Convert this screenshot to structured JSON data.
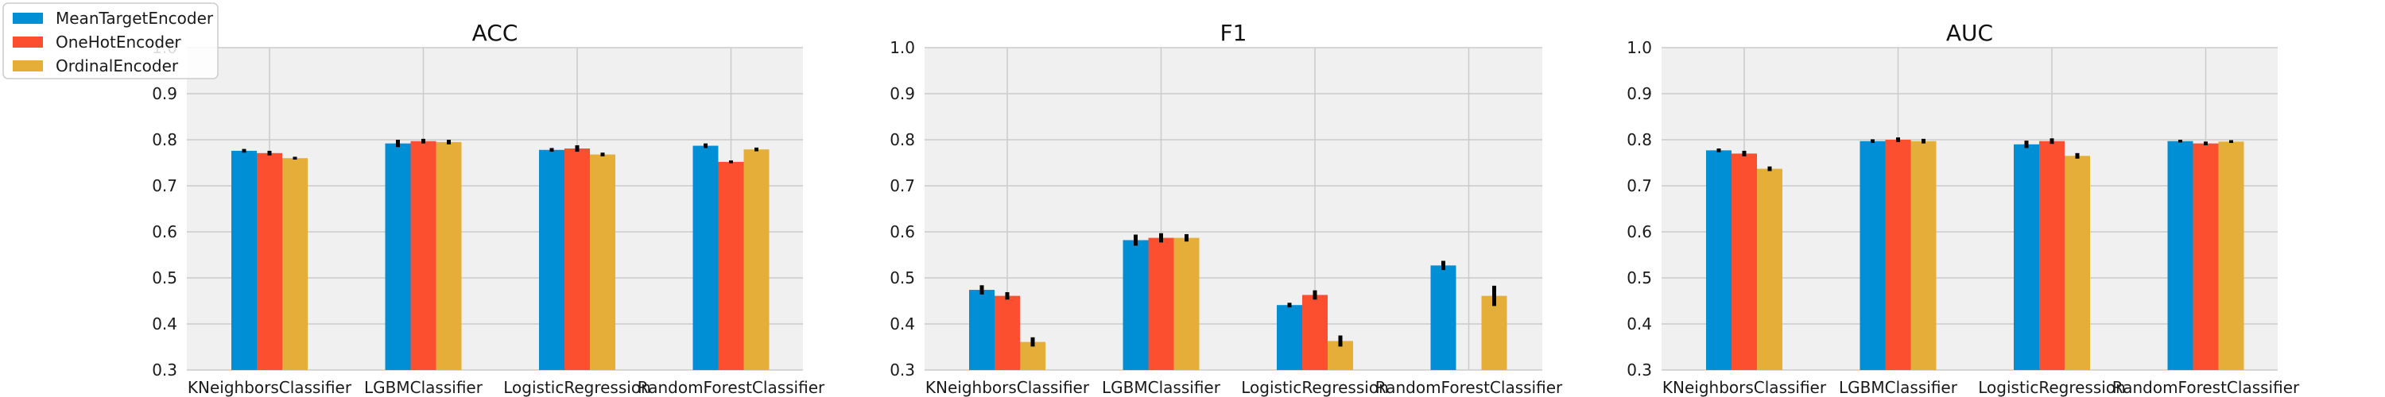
{
  "colors": {
    "background": "#ffffff",
    "panel": "#f0f0f0",
    "grid": "#cbcbcb",
    "errorbar": "#000000",
    "series": [
      "#008fd5",
      "#fc4f30",
      "#e5ae38"
    ]
  },
  "legend": {
    "placement": "top-left",
    "items": [
      "MeanTargetEncoder",
      "OneHotEncoder",
      "OrdinalEncoder"
    ]
  },
  "chart_data": [
    {
      "type": "bar",
      "title": "ACC",
      "categories": [
        "KNeighborsClassifier",
        "LGBMClassifier",
        "LogisticRegression",
        "RandomForestClassifier"
      ],
      "ylim": [
        0.3,
        1.0
      ],
      "yticks": [
        "0.3",
        "0.4",
        "0.5",
        "0.6",
        "0.7",
        "0.8",
        "0.9",
        "1.0"
      ],
      "grid": true,
      "series": [
        {
          "name": "MeanTargetEncoder",
          "values": [
            0.776,
            0.792,
            0.778,
            0.787
          ],
          "errors": [
            0.004,
            0.008,
            0.004,
            0.005
          ]
        },
        {
          "name": "OneHotEncoder",
          "values": [
            0.771,
            0.797,
            0.781,
            0.752
          ],
          "errors": [
            0.005,
            0.005,
            0.007,
            0.003
          ]
        },
        {
          "name": "OrdinalEncoder",
          "values": [
            0.76,
            0.795,
            0.768,
            0.779
          ],
          "errors": [
            0.003,
            0.005,
            0.004,
            0.004
          ]
        }
      ]
    },
    {
      "type": "bar",
      "title": "F1",
      "categories": [
        "KNeighborsClassifier",
        "LGBMClassifier",
        "LogisticRegression",
        "RandomForestClassifier"
      ],
      "ylim": [
        0.3,
        1.0
      ],
      "yticks": [
        "0.3",
        "0.4",
        "0.5",
        "0.6",
        "0.7",
        "0.8",
        "0.9",
        "1.0"
      ],
      "grid": true,
      "series": [
        {
          "name": "MeanTargetEncoder",
          "values": [
            0.474,
            0.582,
            0.441,
            0.527
          ],
          "errors": [
            0.01,
            0.012,
            0.005,
            0.01
          ]
        },
        {
          "name": "OneHotEncoder",
          "values": [
            0.461,
            0.587,
            0.463,
            null
          ],
          "errors": [
            0.008,
            0.01,
            0.01,
            null
          ]
        },
        {
          "name": "OrdinalEncoder",
          "values": [
            0.361,
            0.587,
            0.363,
            0.461
          ],
          "errors": [
            0.01,
            0.008,
            0.012,
            0.022
          ]
        }
      ]
    },
    {
      "type": "bar",
      "title": "AUC",
      "categories": [
        "KNeighborsClassifier",
        "LGBMClassifier",
        "LogisticRegression",
        "RandomForestClassifier"
      ],
      "ylim": [
        0.3,
        1.0
      ],
      "yticks": [
        "0.3",
        "0.4",
        "0.5",
        "0.6",
        "0.7",
        "0.8",
        "0.9",
        "1.0"
      ],
      "grid": true,
      "series": [
        {
          "name": "MeanTargetEncoder",
          "values": [
            0.777,
            0.797,
            0.79,
            0.797
          ],
          "errors": [
            0.004,
            0.004,
            0.008,
            0.003
          ]
        },
        {
          "name": "OneHotEncoder",
          "values": [
            0.77,
            0.8,
            0.797,
            0.792
          ],
          "errors": [
            0.006,
            0.005,
            0.006,
            0.004
          ]
        },
        {
          "name": "OrdinalEncoder",
          "values": [
            0.737,
            0.797,
            0.765,
            0.796
          ],
          "errors": [
            0.005,
            0.005,
            0.006,
            0.003
          ]
        }
      ]
    }
  ]
}
